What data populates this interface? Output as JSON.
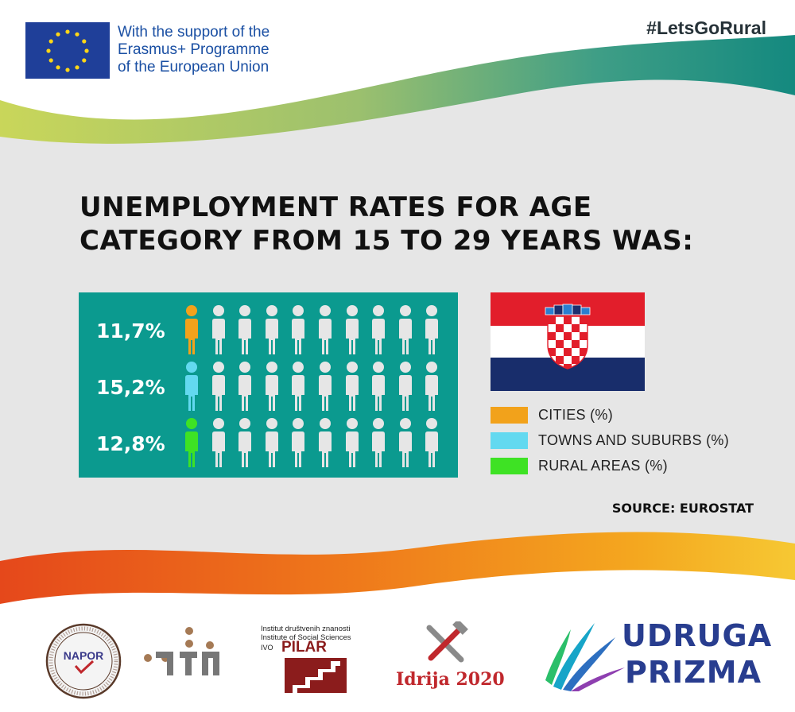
{
  "header": {
    "eu_support_lines": [
      "With the support of the",
      "Erasmus+ Programme",
      "of the European Union"
    ],
    "hashtag": "#LetsGoRural"
  },
  "headline": {
    "line1": "UNEMPLOYMENT  RATES FOR AGE",
    "line2": "CATEGORY FROM 15 TO 29 YEARS WAS:"
  },
  "infographic": {
    "figures_per_row": 10,
    "rows": [
      {
        "label": "11,7%",
        "value": 11.7,
        "category": "cities",
        "color": "#f2a21b"
      },
      {
        "label": "15,2%",
        "value": 15.2,
        "category": "towns_and_suburbs",
        "color": "#63d9f0"
      },
      {
        "label": "12,8%",
        "value": 12.8,
        "category": "rural_areas",
        "color": "#3ee224"
      }
    ],
    "highlight_count_per_row": 1,
    "figure_color": "#e6e6e6",
    "panel_color": "#0b9a8f"
  },
  "legend": {
    "items": [
      {
        "label": "CITIES (%)",
        "color": "#f2a21b"
      },
      {
        "label": "TOWNS AND SUBURBS (%)",
        "color": "#63d9f0"
      },
      {
        "label": "RURAL AREAS (%)",
        "color": "#3ee224"
      }
    ]
  },
  "flag": {
    "country": "Croatia",
    "colors": [
      "#e21e2b",
      "#ffffff",
      "#182d6b"
    ]
  },
  "source": "SOURCE: EUROSTAT",
  "footer_logos": {
    "napor": {
      "text": "NAPOR"
    },
    "hifen": {
      "icon": "hifen-logo-icon"
    },
    "pilar": {
      "line1": "Institut društvenih znanosti",
      "line2": "Institute of Social Sciences",
      "ivo": "IVO",
      "name": "PILAR"
    },
    "idrija": {
      "text": "Idrija 2020"
    },
    "prizma": {
      "line1": "UDRUGA",
      "line2": "PRIZMA"
    }
  },
  "colors": {
    "background": "#e8e8e8",
    "top_wave": [
      "#c2d25a",
      "#5ba88a",
      "#1b8f84"
    ],
    "bottom_wave": [
      "#e8501c",
      "#f28a1a",
      "#f5c22a"
    ],
    "eu_blue": "#1a4fa3"
  }
}
